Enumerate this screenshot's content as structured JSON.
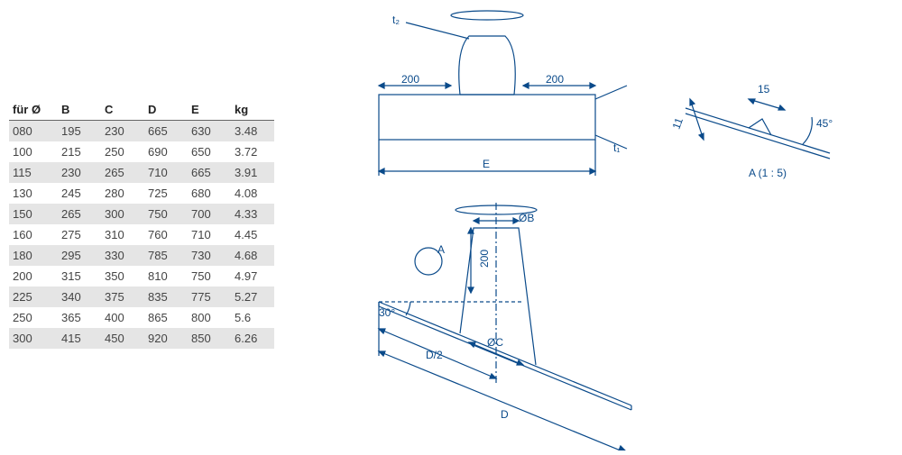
{
  "table": {
    "columns": [
      "für Ø",
      "B",
      "C",
      "D",
      "E",
      "kg"
    ],
    "rows": [
      [
        "080",
        "195",
        "230",
        "665",
        "630",
        "3.48"
      ],
      [
        "100",
        "215",
        "250",
        "690",
        "650",
        "3.72"
      ],
      [
        "115",
        "230",
        "265",
        "710",
        "665",
        "3.91"
      ],
      [
        "130",
        "245",
        "280",
        "725",
        "680",
        "4.08"
      ],
      [
        "150",
        "265",
        "300",
        "750",
        "700",
        "4.33"
      ],
      [
        "160",
        "275",
        "310",
        "760",
        "710",
        "4.45"
      ],
      [
        "180",
        "295",
        "330",
        "785",
        "730",
        "4.68"
      ],
      [
        "200",
        "315",
        "350",
        "810",
        "750",
        "4.97"
      ],
      [
        "225",
        "340",
        "375",
        "835",
        "775",
        "5.27"
      ],
      [
        "250",
        "365",
        "400",
        "865",
        "800",
        "5.6"
      ],
      [
        "300",
        "415",
        "450",
        "920",
        "850",
        "6.26"
      ]
    ],
    "header_color": "#222222",
    "cell_color": "#444444",
    "stripe_color": "#e5e5e5",
    "background_color": "#ffffff",
    "font_size": 13
  },
  "figure_top": {
    "labels": {
      "t2": "t₂",
      "t1": "t₁",
      "left200": "200",
      "right200": "200",
      "E": "E"
    },
    "stroke_color": "#0a4a8a",
    "font_size": 12
  },
  "figure_bottom": {
    "labels": {
      "A": "A",
      "angle30": "30°",
      "B": "ØB",
      "C": "ØC",
      "D2": "D/2",
      "D": "D",
      "h200": "200"
    },
    "stroke_color": "#0a4a8a"
  },
  "figure_detail": {
    "labels": {
      "len15": "15",
      "len11": "11",
      "angle45": "45°",
      "title": "A (1 : 5)"
    },
    "stroke_color": "#0a4a8a"
  }
}
